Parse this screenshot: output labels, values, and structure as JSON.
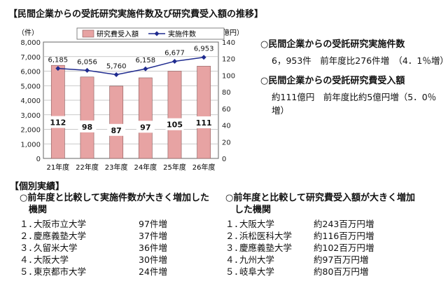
{
  "title": "【民間企業からの受託研究実施件数及び研究費受入額の推移】",
  "chart_data": {
    "type": "bar+line",
    "categories": [
      "21年度",
      "22年度",
      "23年度",
      "24年度",
      "25年度",
      "26年度"
    ],
    "bars": {
      "name": "研究費受入額",
      "axis": "right",
      "values": [
        112,
        98,
        87,
        97,
        105,
        111
      ],
      "color": "#e7a3a3"
    },
    "line": {
      "name": "実施件数",
      "axis": "left",
      "values": [
        6185,
        6056,
        5760,
        6158,
        6677,
        6953
      ],
      "color": "#1f2b8f"
    },
    "y_left": {
      "unit": "（件）",
      "min": 0,
      "max": 8000,
      "step": 1000,
      "ticks": [
        "0",
        "1,000",
        "2,000",
        "3,000",
        "4,000",
        "5,000",
        "6,000",
        "7,000",
        "8,000"
      ]
    },
    "y_right": {
      "unit": "（億円）",
      "min": 0,
      "max": 140,
      "step": 20,
      "ticks": [
        "0",
        "20",
        "40",
        "60",
        "80",
        "100",
        "120",
        "140"
      ]
    },
    "line_labels": [
      "6,185",
      "6,056",
      "5,760",
      "6,158",
      "6,677",
      "6,953"
    ],
    "grid": true,
    "legend": "top"
  },
  "summary": [
    {
      "head": "○民間企業からの受託研究実施件数",
      "body": "6，953件　前年度比276件増　（4．1％増）"
    },
    {
      "head": "○民間企業からの受託研究費受入額",
      "body": "約111億円　前年度比約5億円増（5．0％増）"
    }
  ],
  "section_title": "【個別実績】",
  "left_list": {
    "head": [
      "○前年度と比較して実施件数が大きく増加した",
      "　機関"
    ],
    "items": [
      {
        "rank": "１．",
        "name": "大阪市立大学",
        "value": "97件増"
      },
      {
        "rank": "２．",
        "name": "慶應義塾大学",
        "value": "37件増"
      },
      {
        "rank": "３．",
        "name": "久留米大学",
        "value": "36件増"
      },
      {
        "rank": "４．",
        "name": "大阪大学",
        "value": "30件増"
      },
      {
        "rank": "５．",
        "name": "東京都市大学",
        "value": "24件増"
      }
    ]
  },
  "right_list": {
    "head": [
      "○前年度と比較して研究費受入額が大きく増加",
      "　した機関"
    ],
    "items": [
      {
        "rank": "１．",
        "name": "大阪大学",
        "value": "約243百万円増"
      },
      {
        "rank": "２．",
        "name": "浜松医科大学",
        "value": "約116百万円増"
      },
      {
        "rank": "３．",
        "name": "慶應義塾大学",
        "value": "約102百万円増"
      },
      {
        "rank": "４．",
        "name": "九州大学",
        "value": "約97百万円増"
      },
      {
        "rank": "５．",
        "name": "岐阜大学",
        "value": "約80百万円増"
      }
    ]
  }
}
